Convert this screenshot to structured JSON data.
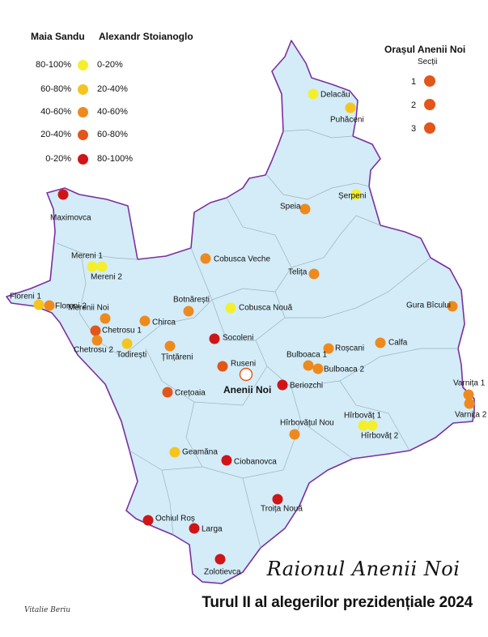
{
  "colors": {
    "land": "#d3ecf8",
    "border": "#7b2f9e",
    "internal_border": "#9db3bf",
    "c_yellow_light": "#f3ef2d",
    "c_yellow": "#f5c51e",
    "c_orange": "#ee8a1d",
    "c_dark_orange": "#e2561a",
    "c_red": "#cf1518",
    "city": "#ffffff"
  },
  "legend": {
    "header_sandu": "Maia Sandu",
    "header_stoianoglo": "Alexandr Stoianoglo",
    "rows": [
      {
        "sandu": "80-100%",
        "stoianoglo": "0-20%",
        "color": "c_yellow_light"
      },
      {
        "sandu": "60-80%",
        "stoianoglo": "20-40%",
        "color": "c_yellow"
      },
      {
        "sandu": "40-60%",
        "stoianoglo": "40-60%",
        "color": "c_orange"
      },
      {
        "sandu": "20-40%",
        "stoianoglo": "60-80%",
        "color": "c_dark_orange"
      },
      {
        "sandu": "0-20%",
        "stoianoglo": "80-100%",
        "color": "c_red"
      }
    ]
  },
  "city_legend": {
    "title": "Orașul Anenii Noi",
    "subtitle": "Secții",
    "items": [
      {
        "label": "1",
        "color": "c_dark_orange"
      },
      {
        "label": "2",
        "color": "c_dark_orange"
      },
      {
        "label": "3",
        "color": "c_dark_orange"
      }
    ]
  },
  "villages": [
    {
      "name": "Delacău",
      "color": "c_yellow_light"
    },
    {
      "name": "Puhăceni",
      "color": "c_yellow"
    },
    {
      "name": "Șerpeni",
      "color": "c_yellow_light"
    },
    {
      "name": "Speia",
      "color": "c_orange"
    },
    {
      "name": "Maximovca",
      "color": "c_red"
    },
    {
      "name": "Mereni 1",
      "color": "c_yellow_light"
    },
    {
      "name": "Mereni 2",
      "color": "c_yellow_light"
    },
    {
      "name": "Cobusca Veche",
      "color": "c_orange"
    },
    {
      "name": "Telița",
      "color": "c_orange"
    },
    {
      "name": "Floreni 1",
      "color": "c_yellow"
    },
    {
      "name": "Floreni 2",
      "color": "c_orange"
    },
    {
      "name": "Merenii Noi",
      "color": "c_orange"
    },
    {
      "name": "Botnărești",
      "color": "c_orange"
    },
    {
      "name": "Cobusca Nouă",
      "color": "c_yellow_light"
    },
    {
      "name": "Gura Bîcului",
      "color": "c_orange"
    },
    {
      "name": "Chirca",
      "color": "c_orange"
    },
    {
      "name": "Chetrosu 1",
      "color": "c_dark_orange"
    },
    {
      "name": "Chetrosu 2",
      "color": "c_orange"
    },
    {
      "name": "Todirești",
      "color": "c_yellow"
    },
    {
      "name": "Socoleni",
      "color": "c_red"
    },
    {
      "name": "Țînțăreni",
      "color": "c_orange"
    },
    {
      "name": "Roșcani",
      "color": "c_orange"
    },
    {
      "name": "Calfa",
      "color": "c_orange"
    },
    {
      "name": "Ruseni",
      "color": "c_dark_orange"
    },
    {
      "name": "Bulboaca 1",
      "color": "c_orange"
    },
    {
      "name": "Bulboaca 2",
      "color": "c_orange"
    },
    {
      "name": "Beriozchi",
      "color": "c_red"
    },
    {
      "name": "Crețoaia",
      "color": "c_dark_orange"
    },
    {
      "name": "Varnița 1",
      "color": "c_orange"
    },
    {
      "name": "Varnița 2",
      "color": "c_orange"
    },
    {
      "name": "Hîrbovăț 1",
      "color": "c_yellow_light"
    },
    {
      "name": "Hîrbovăț 2",
      "color": "c_yellow_light"
    },
    {
      "name": "Hîrbovățul Nou",
      "color": "c_orange"
    },
    {
      "name": "Geamăna",
      "color": "c_yellow"
    },
    {
      "name": "Ciobanovca",
      "color": "c_red"
    },
    {
      "name": "Troița Nouă",
      "color": "c_red"
    },
    {
      "name": "Ochiul Roș",
      "color": "c_red"
    },
    {
      "name": "Larga",
      "color": "c_red"
    },
    {
      "name": "Zolotievca",
      "color": "c_red"
    }
  ],
  "city": {
    "name": "Anenii Noi"
  },
  "title_script": "Raionul Anenii Noi",
  "title_main": "Turul II al alegerilor prezidențiale 2024",
  "signature": "Vitalie Beriu"
}
